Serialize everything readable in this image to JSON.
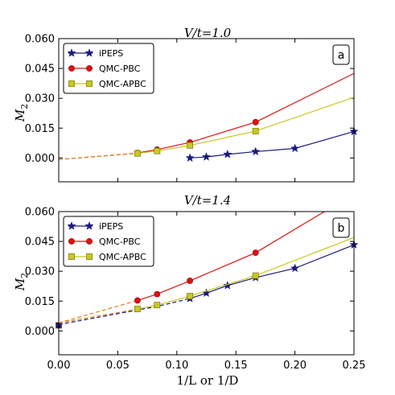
{
  "figure": {
    "xlabel": "1/L or 1/D",
    "xticks": [
      "0.00",
      "0.05",
      "0.10",
      "0.15",
      "0.20",
      "0.25"
    ]
  },
  "chart_data": [
    {
      "type": "line",
      "title": "V/t=1.0",
      "panel_tag": "a",
      "ylabel": "M2",
      "xlim": [
        0.0,
        0.25
      ],
      "ylim": [
        -0.012,
        0.06
      ],
      "yticks": [
        "0.060",
        "0.045",
        "0.030",
        "0.015",
        "0.000"
      ],
      "ytick_values": [
        0.06,
        0.045,
        0.03,
        0.015,
        0.0
      ],
      "legend_position": "top-left",
      "series": [
        {
          "name": "iPEPS",
          "color": "#1a1a80",
          "marker": "star",
          "x": [
            0.1111,
            0.125,
            0.1429,
            0.1667,
            0.2,
            0.25
          ],
          "y": [
            0.0,
            0.0005,
            0.0018,
            0.0032,
            0.0048,
            0.0133
          ]
        },
        {
          "name": "QMC-PBC",
          "color": "#e01010",
          "marker": "circle",
          "x": [
            0.0667,
            0.0833,
            0.1111,
            0.1667
          ],
          "y": [
            0.0025,
            0.0042,
            0.0078,
            0.018
          ],
          "fit_x": [
            0.0,
            0.0667,
            0.0833,
            0.1111,
            0.1667,
            0.25
          ],
          "fit_y": [
            -0.0008,
            0.0025,
            0.0042,
            0.0078,
            0.018,
            0.0425
          ],
          "extrapolation_end_x": 0.0667
        },
        {
          "name": "QMC-APBC",
          "color": "#c8c820",
          "marker": "square",
          "x": [
            0.0667,
            0.0833,
            0.1111,
            0.1667
          ],
          "y": [
            0.0023,
            0.0035,
            0.0063,
            0.0135
          ],
          "fit_x": [
            0.0,
            0.0667,
            0.0833,
            0.1111,
            0.1667,
            0.25
          ],
          "fit_y": [
            -0.0008,
            0.0023,
            0.0035,
            0.0063,
            0.0135,
            0.0305
          ],
          "extrapolation_end_x": 0.0667
        }
      ]
    },
    {
      "type": "line",
      "title": "V/t=1.4",
      "panel_tag": "b",
      "ylabel": "M2",
      "xlim": [
        0.0,
        0.25
      ],
      "ylim": [
        -0.012,
        0.06
      ],
      "yticks": [
        "0.060",
        "0.045",
        "0.030",
        "0.015",
        "0.000"
      ],
      "ytick_values": [
        0.06,
        0.045,
        0.03,
        0.015,
        0.0
      ],
      "legend_position": "top-left",
      "series": [
        {
          "name": "iPEPS",
          "color": "#1a1a80",
          "marker": "star",
          "x": [
            0.1111,
            0.125,
            0.1429,
            0.1667,
            0.2,
            0.25
          ],
          "y": [
            0.0163,
            0.019,
            0.0228,
            0.0268,
            0.0315,
            0.0433
          ],
          "fit_x": [
            0.0,
            0.0667,
            0.0833,
            0.1111
          ],
          "fit_y": [
            0.0032,
            0.0105,
            0.0123,
            0.0163
          ],
          "extrapolation_end_x": 0.1111,
          "extra_points_x": [
            0.0
          ],
          "extra_points_y": [
            0.0028
          ]
        },
        {
          "name": "QMC-PBC",
          "color": "#e01010",
          "marker": "circle",
          "x": [
            0.0667,
            0.0833,
            0.1111,
            0.1667
          ],
          "y": [
            0.0153,
            0.0185,
            0.0252,
            0.0393
          ],
          "fit_x": [
            0.0,
            0.0667,
            0.0833,
            0.1111,
            0.1667,
            0.225
          ],
          "fit_y": [
            0.004,
            0.0153,
            0.0185,
            0.0252,
            0.0393,
            0.06
          ],
          "extrapolation_end_x": 0.0667
        },
        {
          "name": "QMC-APBC",
          "color": "#c8c820",
          "marker": "square",
          "x": [
            0.0667,
            0.0833,
            0.1111,
            0.1667
          ],
          "y": [
            0.011,
            0.013,
            0.0175,
            0.0278
          ],
          "fit_x": [
            0.0,
            0.0667,
            0.0833,
            0.1111,
            0.1667,
            0.25
          ],
          "fit_y": [
            0.004,
            0.011,
            0.013,
            0.0175,
            0.0278,
            0.047
          ],
          "extrapolation_end_x": 0.0667
        }
      ]
    }
  ]
}
